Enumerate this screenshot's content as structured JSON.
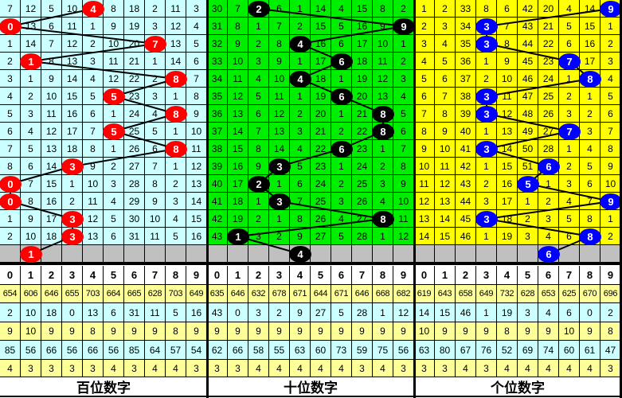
{
  "colors": {
    "panel_bg": [
      "#ccffff",
      "#00ee00",
      "#ffff00"
    ],
    "ball": [
      "#ff0000",
      "#000000",
      "#0000ff"
    ],
    "missing_row": "#c0c0c0",
    "stat_yellow": "#ffff99",
    "stat_cyan": "#ccffff"
  },
  "chart_data": {
    "type": "table",
    "panels": [
      {
        "label": "百位数字",
        "rows": [
          [
            "7",
            "12",
            "5",
            "10",
            "4",
            "8",
            "18",
            "2",
            "11",
            "3"
          ],
          [
            "0",
            "13",
            "6",
            "11",
            "1",
            "9",
            "19",
            "3",
            "12",
            "4"
          ],
          [
            "1",
            "14",
            "7",
            "12",
            "2",
            "10",
            "20",
            "7",
            "13",
            "5"
          ],
          [
            "2",
            "1",
            "8",
            "13",
            "3",
            "11",
            "21",
            "1",
            "14",
            "6"
          ],
          [
            "3",
            "1",
            "9",
            "14",
            "4",
            "12",
            "22",
            "2",
            "8",
            "7"
          ],
          [
            "4",
            "2",
            "10",
            "15",
            "5",
            "5",
            "23",
            "3",
            "1",
            "8"
          ],
          [
            "5",
            "3",
            "11",
            "16",
            "6",
            "1",
            "24",
            "4",
            "8",
            "9"
          ],
          [
            "6",
            "4",
            "12",
            "17",
            "7",
            "5",
            "25",
            "5",
            "1",
            "10"
          ],
          [
            "7",
            "5",
            "13",
            "18",
            "8",
            "1",
            "26",
            "6",
            "8",
            "11"
          ],
          [
            "8",
            "6",
            "14",
            "3",
            "9",
            "2",
            "27",
            "7",
            "1",
            "12"
          ],
          [
            "0",
            "7",
            "15",
            "1",
            "10",
            "3",
            "28",
            "8",
            "2",
            "13"
          ],
          [
            "0",
            "8",
            "16",
            "2",
            "11",
            "4",
            "29",
            "9",
            "3",
            "14"
          ],
          [
            "1",
            "9",
            "17",
            "3",
            "12",
            "5",
            "30",
            "10",
            "4",
            "15"
          ],
          [
            "2",
            "10",
            "18",
            "3",
            "13",
            "6",
            "31",
            "11",
            "5",
            "16"
          ]
        ],
        "balls": [
          4,
          0,
          7,
          1,
          8,
          5,
          8,
          5,
          8,
          3,
          0,
          0,
          3,
          3,
          1
        ],
        "header": [
          "0",
          "1",
          "2",
          "3",
          "4",
          "5",
          "6",
          "7",
          "8",
          "9"
        ],
        "stats": [
          [
            "654",
            "606",
            "646",
            "655",
            "703",
            "664",
            "665",
            "628",
            "703",
            "649"
          ],
          [
            "2",
            "10",
            "18",
            "0",
            "13",
            "6",
            "31",
            "11",
            "5",
            "16"
          ],
          [
            "9",
            "10",
            "9",
            "9",
            "8",
            "9",
            "9",
            "9",
            "8",
            "9"
          ],
          [
            "85",
            "56",
            "66",
            "56",
            "66",
            "56",
            "85",
            "64",
            "57",
            "54"
          ],
          [
            "4",
            "3",
            "3",
            "3",
            "3",
            "4",
            "3",
            "4",
            "4",
            "3"
          ]
        ]
      },
      {
        "label": "十位数字",
        "rows": [
          [
            "30",
            "7",
            "2",
            "6",
            "1",
            "14",
            "4",
            "15",
            "8",
            "2"
          ],
          [
            "31",
            "8",
            "1",
            "7",
            "2",
            "15",
            "5",
            "16",
            "9",
            "9"
          ],
          [
            "32",
            "9",
            "2",
            "8",
            "4",
            "16",
            "6",
            "17",
            "10",
            "1"
          ],
          [
            "33",
            "10",
            "3",
            "9",
            "1",
            "17",
            "6",
            "18",
            "11",
            "2"
          ],
          [
            "34",
            "11",
            "4",
            "10",
            "4",
            "18",
            "1",
            "19",
            "12",
            "3"
          ],
          [
            "35",
            "12",
            "5",
            "11",
            "1",
            "19",
            "6",
            "20",
            "13",
            "4"
          ],
          [
            "36",
            "13",
            "6",
            "12",
            "2",
            "20",
            "1",
            "21",
            "8",
            "5"
          ],
          [
            "37",
            "14",
            "7",
            "13",
            "3",
            "21",
            "2",
            "22",
            "8",
            "6"
          ],
          [
            "38",
            "15",
            "8",
            "14",
            "4",
            "22",
            "6",
            "23",
            "1",
            "7"
          ],
          [
            "39",
            "16",
            "9",
            "3",
            "5",
            "23",
            "1",
            "24",
            "2",
            "8"
          ],
          [
            "40",
            "17",
            "2",
            "1",
            "6",
            "24",
            "2",
            "25",
            "3",
            "9"
          ],
          [
            "41",
            "18",
            "1",
            "3",
            "7",
            "25",
            "3",
            "26",
            "4",
            "10"
          ],
          [
            "42",
            "19",
            "2",
            "1",
            "8",
            "26",
            "4",
            "27",
            "8",
            "11"
          ],
          [
            "43",
            "1",
            "3",
            "2",
            "9",
            "27",
            "5",
            "28",
            "1",
            "12"
          ]
        ],
        "balls": [
          2,
          9,
          4,
          6,
          4,
          6,
          8,
          8,
          6,
          3,
          2,
          3,
          8,
          1,
          4
        ],
        "header": [
          "0",
          "1",
          "2",
          "3",
          "4",
          "5",
          "6",
          "7",
          "8",
          "9"
        ],
        "stats": [
          [
            "635",
            "646",
            "632",
            "678",
            "671",
            "644",
            "671",
            "646",
            "668",
            "682"
          ],
          [
            "43",
            "0",
            "3",
            "2",
            "9",
            "27",
            "5",
            "28",
            "1",
            "12"
          ],
          [
            "9",
            "9",
            "9",
            "9",
            "9",
            "9",
            "9",
            "9",
            "9",
            "9"
          ],
          [
            "62",
            "66",
            "58",
            "55",
            "63",
            "60",
            "73",
            "59",
            "75",
            "56"
          ],
          [
            "3",
            "3",
            "4",
            "4",
            "4",
            "4",
            "4",
            "3",
            "4",
            "3"
          ]
        ]
      },
      {
        "label": "个位数字",
        "rows": [
          [
            "1",
            "2",
            "33",
            "8",
            "6",
            "42",
            "20",
            "4",
            "14",
            "9"
          ],
          [
            "2",
            "3",
            "34",
            "3",
            "7",
            "43",
            "21",
            "5",
            "15",
            "1"
          ],
          [
            "3",
            "4",
            "35",
            "3",
            "8",
            "44",
            "22",
            "6",
            "16",
            "2"
          ],
          [
            "4",
            "5",
            "36",
            "1",
            "9",
            "45",
            "23",
            "7",
            "17",
            "3"
          ],
          [
            "5",
            "6",
            "37",
            "2",
            "10",
            "46",
            "24",
            "1",
            "8",
            "4"
          ],
          [
            "6",
            "7",
            "38",
            "3",
            "11",
            "47",
            "25",
            "2",
            "1",
            "5"
          ],
          [
            "7",
            "8",
            "39",
            "3",
            "12",
            "48",
            "26",
            "3",
            "2",
            "6"
          ],
          [
            "8",
            "9",
            "40",
            "1",
            "13",
            "49",
            "27",
            "7",
            "3",
            "7"
          ],
          [
            "9",
            "10",
            "41",
            "3",
            "14",
            "50",
            "28",
            "1",
            "4",
            "8"
          ],
          [
            "10",
            "11",
            "42",
            "1",
            "15",
            "51",
            "6",
            "2",
            "5",
            "9"
          ],
          [
            "11",
            "12",
            "43",
            "2",
            "16",
            "5",
            "1",
            "3",
            "6",
            "10"
          ],
          [
            "12",
            "13",
            "44",
            "3",
            "17",
            "1",
            "2",
            "4",
            "7",
            "9"
          ],
          [
            "13",
            "14",
            "45",
            "3",
            "18",
            "2",
            "3",
            "5",
            "8",
            "1"
          ],
          [
            "14",
            "15",
            "46",
            "1",
            "19",
            "3",
            "4",
            "6",
            "8",
            "2"
          ]
        ],
        "balls": [
          9,
          3,
          3,
          7,
          8,
          3,
          3,
          7,
          3,
          6,
          5,
          9,
          3,
          8,
          6
        ],
        "header": [
          "0",
          "1",
          "2",
          "3",
          "4",
          "5",
          "6",
          "7",
          "8",
          "9"
        ],
        "stats": [
          [
            "619",
            "643",
            "658",
            "649",
            "732",
            "628",
            "653",
            "625",
            "670",
            "696"
          ],
          [
            "14",
            "15",
            "46",
            "1",
            "19",
            "3",
            "4",
            "6",
            "0",
            "2"
          ],
          [
            "10",
            "9",
            "9",
            "9",
            "8",
            "9",
            "9",
            "10",
            "9",
            "8"
          ],
          [
            "63",
            "80",
            "67",
            "76",
            "52",
            "69",
            "74",
            "60",
            "61",
            "47"
          ],
          [
            "3",
            "3",
            "4",
            "3",
            "4",
            "4",
            "4",
            "4",
            "4",
            "3"
          ]
        ]
      }
    ]
  }
}
